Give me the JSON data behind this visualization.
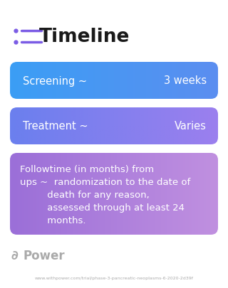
{
  "title": "Timeline",
  "title_icon_color": "#7B5CE5",
  "background_color": "#ffffff",
  "cards": [
    {
      "label_left": "Screening ~",
      "label_right": "3 weeks",
      "color_left": "#3B9EF5",
      "color_right": "#5B8EF0",
      "text_color": "#ffffff",
      "font_size": 10.5
    },
    {
      "label_left": "Treatment ~",
      "label_right": "Varies",
      "color_left": "#6B7FEE",
      "color_right": "#9B7FEE",
      "text_color": "#ffffff",
      "font_size": 10.5
    },
    {
      "label_left": "Followtime (in months) from\nups ~  randomization to the date of\n         death for any reason,\n         assessed through at least 24\n         months.",
      "color_left": "#9B6FD8",
      "color_right": "#C090E0",
      "text_color": "#ffffff",
      "font_size": 9.5
    }
  ],
  "footer_logo_text": "Power",
  "footer_url": "www.withpower.com/trial/phase-3-pancreatic-neoplasms-6-2020-2d39f",
  "footer_color": "#aaaaaa"
}
